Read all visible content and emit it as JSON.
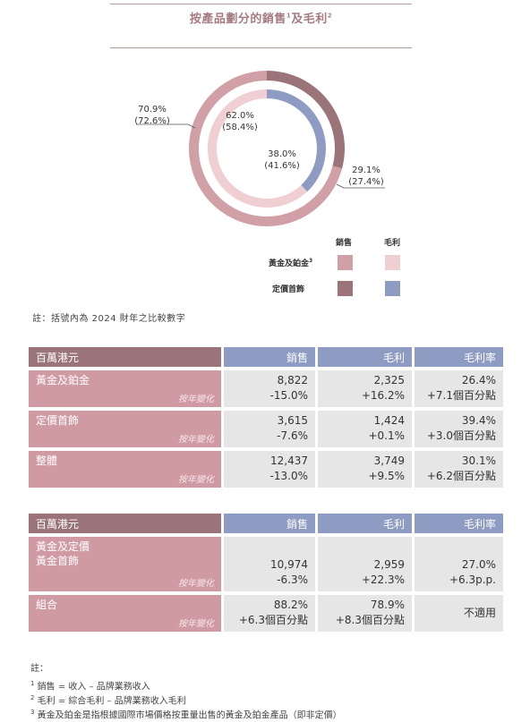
{
  "chart": {
    "title": "按產品劃分的銷售",
    "title_sup1": "1",
    "title_mid": "及毛利",
    "title_sup2": "2",
    "outer_labels": {
      "left": {
        "value": "70.9%",
        "prior": "(72.6%)"
      },
      "right": {
        "value": "29.1%",
        "prior": "(27.4%)"
      }
    },
    "inner_labels": {
      "top": {
        "value": "62.0%",
        "prior": "(58.4%)"
      },
      "bottom": {
        "value": "38.0%",
        "prior": "(41.6%)"
      }
    },
    "legend": {
      "col_sales": "銷售",
      "col_margin": "毛利",
      "row1": "黃金及鉑金",
      "row1_sup": "3",
      "row2": "定價首飾"
    },
    "colors": {
      "gold_sales": "#d1a0a7",
      "gold_margin": "#f0cfd3",
      "jewel_sales": "#9b7479",
      "jewel_margin": "#8e9bc2"
    },
    "note": "註：括號內為 2024 財年之比較數字"
  },
  "chart_data": [
    {
      "type": "pie",
      "ring": "outer",
      "categories": [
        "黃金及鉑金",
        "定價首飾"
      ],
      "values": [
        70.9,
        29.1
      ],
      "prior": [
        72.6,
        27.4
      ]
    },
    {
      "type": "pie",
      "ring": "inner",
      "categories": [
        "黃金及鉑金",
        "定價首飾"
      ],
      "values": [
        62.0,
        38.0
      ],
      "prior": [
        58.4,
        41.6
      ]
    }
  ],
  "table1": {
    "headers": [
      "百萬港元",
      "銷售",
      "毛利",
      "毛利率"
    ],
    "rows": [
      {
        "label": "黃金及鉑金",
        "sub": "按年變化",
        "sales": "8,822",
        "sales_chg": "-15.0%",
        "margin": "2,325",
        "margin_chg": "+16.2%",
        "rate": "26.4%",
        "rate_chg": "+7.1個百分點"
      },
      {
        "label": "定價首飾",
        "sub": "按年變化",
        "sales": "3,615",
        "sales_chg": "-7.6%",
        "margin": "1,424",
        "margin_chg": "+0.1%",
        "rate": "39.4%",
        "rate_chg": "+3.0個百分點"
      },
      {
        "label": "整體",
        "sub": "按年變化",
        "sales": "12,437",
        "sales_chg": "-13.0%",
        "margin": "3,749",
        "margin_chg": "+9.5%",
        "rate": "30.1%",
        "rate_chg": "+6.2個百分點"
      }
    ]
  },
  "table2": {
    "headers": [
      "百萬港元",
      "銷售",
      "毛利",
      "毛利率"
    ],
    "rows": [
      {
        "label1": "黃金及定價",
        "label2": "黃金首飾",
        "sub": "按年變化",
        "sales": "10,974",
        "sales_chg": "-6.3%",
        "margin": "2,959",
        "margin_chg": "+22.3%",
        "rate": "27.0%",
        "rate_chg": "+6.3p.p."
      },
      {
        "label1": "組合",
        "sub": "按年變化",
        "sales": "88.2%",
        "sales_chg": "+6.3個百分點",
        "margin": "78.9%",
        "margin_chg": "+8.3個百分點",
        "rate": "不適用"
      }
    ]
  },
  "footnotes": {
    "heading": "註：",
    "items": [
      {
        "num": "1",
        "text": "銷售 = 收入 – 品牌業務收入"
      },
      {
        "num": "2",
        "text": "毛利 = 綜合毛利 – 品牌業務收入毛利"
      },
      {
        "num": "3",
        "text": "黃金及鉑金是指根據國際市場價格按重量出售的黃金及鉑金產品（即非定價）"
      }
    ]
  }
}
